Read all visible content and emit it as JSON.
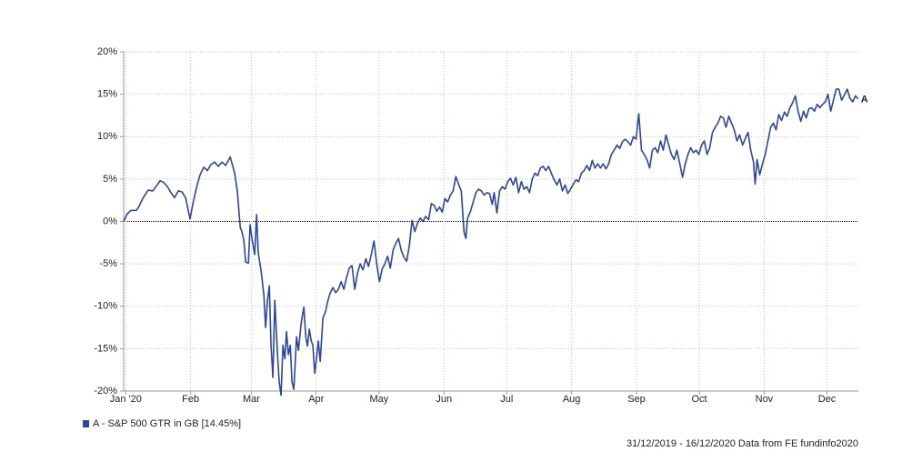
{
  "chart_data": {
    "type": "line",
    "xlim": [
      0,
      351
    ],
    "xticks": [
      {
        "value": 1,
        "label": "Jan '20"
      },
      {
        "value": 32,
        "label": "Feb"
      },
      {
        "value": 61,
        "label": "Mar"
      },
      {
        "value": 92,
        "label": "Apr"
      },
      {
        "value": 122,
        "label": "May"
      },
      {
        "value": 153,
        "label": "Jun"
      },
      {
        "value": 183,
        "label": "Jul"
      },
      {
        "value": 214,
        "label": "Aug"
      },
      {
        "value": 245,
        "label": "Sep"
      },
      {
        "value": 275,
        "label": "Oct"
      },
      {
        "value": 306,
        "label": "Nov"
      },
      {
        "value": 336,
        "label": "Dec"
      }
    ],
    "ylim": [
      -20,
      20
    ],
    "yticks": [
      {
        "value": 20,
        "label": "20%"
      },
      {
        "value": 15,
        "label": "15%"
      },
      {
        "value": 10,
        "label": "10%"
      },
      {
        "value": 5,
        "label": "5%"
      },
      {
        "value": 0,
        "label": "0%"
      },
      {
        "value": -5,
        "label": "-5%"
      },
      {
        "value": -10,
        "label": "-10%"
      },
      {
        "value": -15,
        "label": "-15%"
      },
      {
        "value": -20,
        "label": "-20%"
      }
    ],
    "grid": true,
    "legend_position": "bottom-left",
    "footnote": "31/12/2019 - 16/12/2020 Data from FE fundinfo2020",
    "x": [
      0,
      1.7,
      3.5,
      6.1,
      7.4,
      9.1,
      10.4,
      11.7,
      13.9,
      15.7,
      17.4,
      19.1,
      20.9,
      22.6,
      24.3,
      26.1,
      27.8,
      29.6,
      31.7,
      33.0,
      34.8,
      36.5,
      38.3,
      40.0,
      41.7,
      43.5,
      45.2,
      47.0,
      48.7,
      50.9,
      51.7,
      53.0,
      54.3,
      55.7,
      56.5,
      57.4,
      58.3,
      59.6,
      60.4,
      61.3,
      62.6,
      63.5,
      64.3,
      65.7,
      67.0,
      67.8,
      68.7,
      69.6,
      70.4,
      71.3,
      72.2,
      73.5,
      74.3,
      75.2,
      76.1,
      77.0,
      77.8,
      78.7,
      79.6,
      80.4,
      81.3,
      82.6,
      83.5,
      84.8,
      86.1,
      87.0,
      87.8,
      88.7,
      89.6,
      90.4,
      91.3,
      92.2,
      93.0,
      93.9,
      95.2,
      96.5,
      97.4,
      98.7,
      100.0,
      101.3,
      102.6,
      103.9,
      105.2,
      106.5,
      107.8,
      109.1,
      110.4,
      111.7,
      113.0,
      114.3,
      115.7,
      117.0,
      118.3,
      119.6,
      120.9,
      122.2,
      123.5,
      124.8,
      126.1,
      127.4,
      128.7,
      130.0,
      131.3,
      132.6,
      133.9,
      135.2,
      136.5,
      137.8,
      139.1,
      140.4,
      141.7,
      143.0,
      144.3,
      145.7,
      147.0,
      148.3,
      149.6,
      150.9,
      152.2,
      153.5,
      154.8,
      156.1,
      157.4,
      158.7,
      160.0,
      161.3,
      162.6,
      163.5,
      164.3,
      165.7,
      167.0,
      168.3,
      169.6,
      170.9,
      172.2,
      173.5,
      174.8,
      176.1,
      177.0,
      178.3,
      179.6,
      180.9,
      182.2,
      183.5,
      184.8,
      186.1,
      187.4,
      188.7,
      190.0,
      191.3,
      192.6,
      193.9,
      195.2,
      196.5,
      197.8,
      199.1,
      200.4,
      201.7,
      203.0,
      204.3,
      205.7,
      207.0,
      208.3,
      209.6,
      210.9,
      212.2,
      213.5,
      214.8,
      216.1,
      217.4,
      218.7,
      220.0,
      221.3,
      222.6,
      223.9,
      225.2,
      226.5,
      227.8,
      229.1,
      230.4,
      231.7,
      233.0,
      234.3,
      235.7,
      237.0,
      238.3,
      239.6,
      240.9,
      242.2,
      243.5,
      244.8,
      246.1,
      247.4,
      248.7,
      250.0,
      251.3,
      252.6,
      253.9,
      255.2,
      256.5,
      257.8,
      259.1,
      260.4,
      261.7,
      263.0,
      264.3,
      265.7,
      267.0,
      268.3,
      269.6,
      270.9,
      272.2,
      273.5,
      274.8,
      276.1,
      277.4,
      278.7,
      280.0,
      281.3,
      282.6,
      283.9,
      285.2,
      286.5,
      287.8,
      289.1,
      290.4,
      291.7,
      293.0,
      294.3,
      295.7,
      297.0,
      298.3,
      299.6,
      300.9,
      301.7,
      302.6,
      303.9,
      305.2,
      306.5,
      307.8,
      309.1,
      310.4,
      311.7,
      313.0,
      314.3,
      315.7,
      317.0,
      318.3,
      319.6,
      320.9,
      322.2,
      323.5,
      324.8,
      326.1,
      327.4,
      328.7,
      330.0,
      331.3,
      332.6,
      333.9,
      335.2,
      336.5,
      337.8,
      339.1,
      340.4,
      341.7,
      343.0,
      344.3,
      345.7,
      347.0,
      348.3,
      349.6,
      350.9
    ],
    "series": [
      {
        "name": "A - S&P 500 GTR in GB [14.45%]",
        "label": "A",
        "color": "#2b45a6",
        "values": [
          0,
          0.9,
          1.3,
          1.3,
          1.8,
          2.7,
          3.2,
          3.7,
          3.6,
          4.2,
          4.8,
          4.6,
          4.1,
          3.4,
          2.8,
          3.6,
          3.5,
          2.8,
          0.3,
          2.0,
          4.0,
          5.5,
          6.4,
          6.0,
          6.7,
          7.0,
          6.5,
          7.0,
          6.6,
          7.6,
          6.9,
          5.7,
          3.6,
          -0.7,
          -1.2,
          -2.2,
          -4.8,
          -4.9,
          -0.4,
          -2.0,
          -3.9,
          0.8,
          -3.7,
          -5.9,
          -8.7,
          -12.5,
          -9.3,
          -7.6,
          -14.6,
          -18.4,
          -9.3,
          -15.7,
          -18.9,
          -20.5,
          -14.6,
          -16.2,
          -13.0,
          -15.7,
          -14.6,
          -18.9,
          -19.8,
          -13.6,
          -15.2,
          -12.0,
          -10.1,
          -13.6,
          -14.7,
          -12.7,
          -14.1,
          -14.6,
          -17.9,
          -16.0,
          -14.1,
          -16.5,
          -11.4,
          -10.6,
          -9.5,
          -8.4,
          -7.8,
          -8.4,
          -8.0,
          -7.1,
          -8.0,
          -6.6,
          -5.5,
          -5.2,
          -8.0,
          -6.1,
          -5.0,
          -5.7,
          -4.4,
          -5.3,
          -3.9,
          -2.3,
          -5.0,
          -7.1,
          -5.6,
          -5.0,
          -4.1,
          -5.5,
          -3.4,
          -2.6,
          -2.0,
          -3.4,
          -4.2,
          -4.7,
          -2.8,
          0.1,
          -1.2,
          -0.2,
          0.4,
          0.0,
          0.6,
          0.2,
          2.1,
          1.9,
          1.2,
          1.7,
          1.1,
          2.7,
          2.3,
          3.1,
          3.6,
          5.3,
          4.4,
          3.6,
          -1.2,
          -2.0,
          0.4,
          1.2,
          2.3,
          3.4,
          3.8,
          3.6,
          3.1,
          3.4,
          3.3,
          2.0,
          3.4,
          1.0,
          3.6,
          4.1,
          3.8,
          4.7,
          5.1,
          4.3,
          5.2,
          3.4,
          4.7,
          3.8,
          4.1,
          3.4,
          5.0,
          5.7,
          5.4,
          6.3,
          6.5,
          6.0,
          6.5,
          5.7,
          4.9,
          4.3,
          5.0,
          3.6,
          4.3,
          3.3,
          3.8,
          4.4,
          4.9,
          4.7,
          5.7,
          6.0,
          6.6,
          6.0,
          7.2,
          6.3,
          6.8,
          6.3,
          6.8,
          6.2,
          6.8,
          7.9,
          8.4,
          9.0,
          8.6,
          9.4,
          9.7,
          9.4,
          9.0,
          10.0,
          9.7,
          12.7,
          8.4,
          7.9,
          7.3,
          6.3,
          8.4,
          8.7,
          8.1,
          9.5,
          8.4,
          10.2,
          9.0,
          7.9,
          7.3,
          8.4,
          6.8,
          5.2,
          6.8,
          7.9,
          8.7,
          8.1,
          8.4,
          7.9,
          9.0,
          9.5,
          7.9,
          8.7,
          10.5,
          11.1,
          11.6,
          12.4,
          12.2,
          11.1,
          12.4,
          11.6,
          10.8,
          9.5,
          10.2,
          9.0,
          9.8,
          10.5,
          8.4,
          7.0,
          4.4,
          7.3,
          5.5,
          6.8,
          7.9,
          9.5,
          11.1,
          11.6,
          10.8,
          12.6,
          11.9,
          12.9,
          12.4,
          13.4,
          14.0,
          14.8,
          13.0,
          11.8,
          13.0,
          12.2,
          13.3,
          13.4,
          13.0,
          13.8,
          13.4,
          13.8,
          14.1,
          15.0,
          13.0,
          14.3,
          15.6,
          15.6,
          14.3,
          14.9,
          15.6,
          14.5,
          14.1,
          14.8,
          14.45
        ]
      }
    ]
  }
}
